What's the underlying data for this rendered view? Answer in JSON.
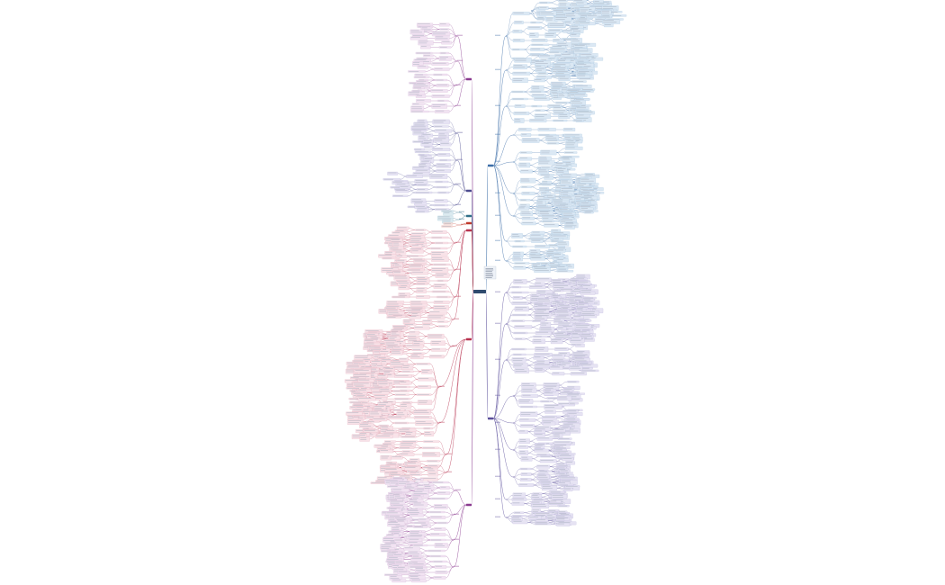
{
  "map": {
    "central_topic": "",
    "note_lines": [
      "",
      "",
      "",
      "",
      "",
      "",
      ""
    ],
    "colors": {
      "central": "#2f4a6e",
      "note": "#eef2f8",
      "blue_branch": "#3d6fa8",
      "blue_node": "#dbe8f4",
      "blue_node_border": "#9fbfdc",
      "purple_branch": "#5a4e9a",
      "purple_node": "#e6e3f3",
      "pink_branch": "#b8324f",
      "pink_node": "#f8e2e8",
      "magenta_branch": "#8a3a8f",
      "magenta_node": "#f1e3f2",
      "teal_branch": "#2f6f87",
      "connector": "#9aa7b8"
    },
    "branches": [
      {
        "id": "right-blue-top",
        "color": "#3d6fa8",
        "side": "right",
        "node_count": 240
      },
      {
        "id": "right-purple-bottom",
        "color": "#5a4e9a",
        "side": "right",
        "node_count": 230
      },
      {
        "id": "left-purple-top",
        "color": "#8a3a8f",
        "side": "left",
        "node_count": 70
      },
      {
        "id": "left-indigo",
        "color": "#4b4a8e",
        "side": "left",
        "node_count": 70
      },
      {
        "id": "left-teal",
        "color": "#2f6f87",
        "side": "left",
        "node_count": 6
      },
      {
        "id": "left-red-small",
        "color": "#c0392b",
        "side": "left",
        "node_count": 4
      },
      {
        "id": "left-pink-big",
        "color": "#b8324f",
        "side": "left",
        "node_count": 220
      },
      {
        "id": "left-magenta-bottom",
        "color": "#8a3a8f",
        "side": "left",
        "node_count": 90
      }
    ]
  }
}
